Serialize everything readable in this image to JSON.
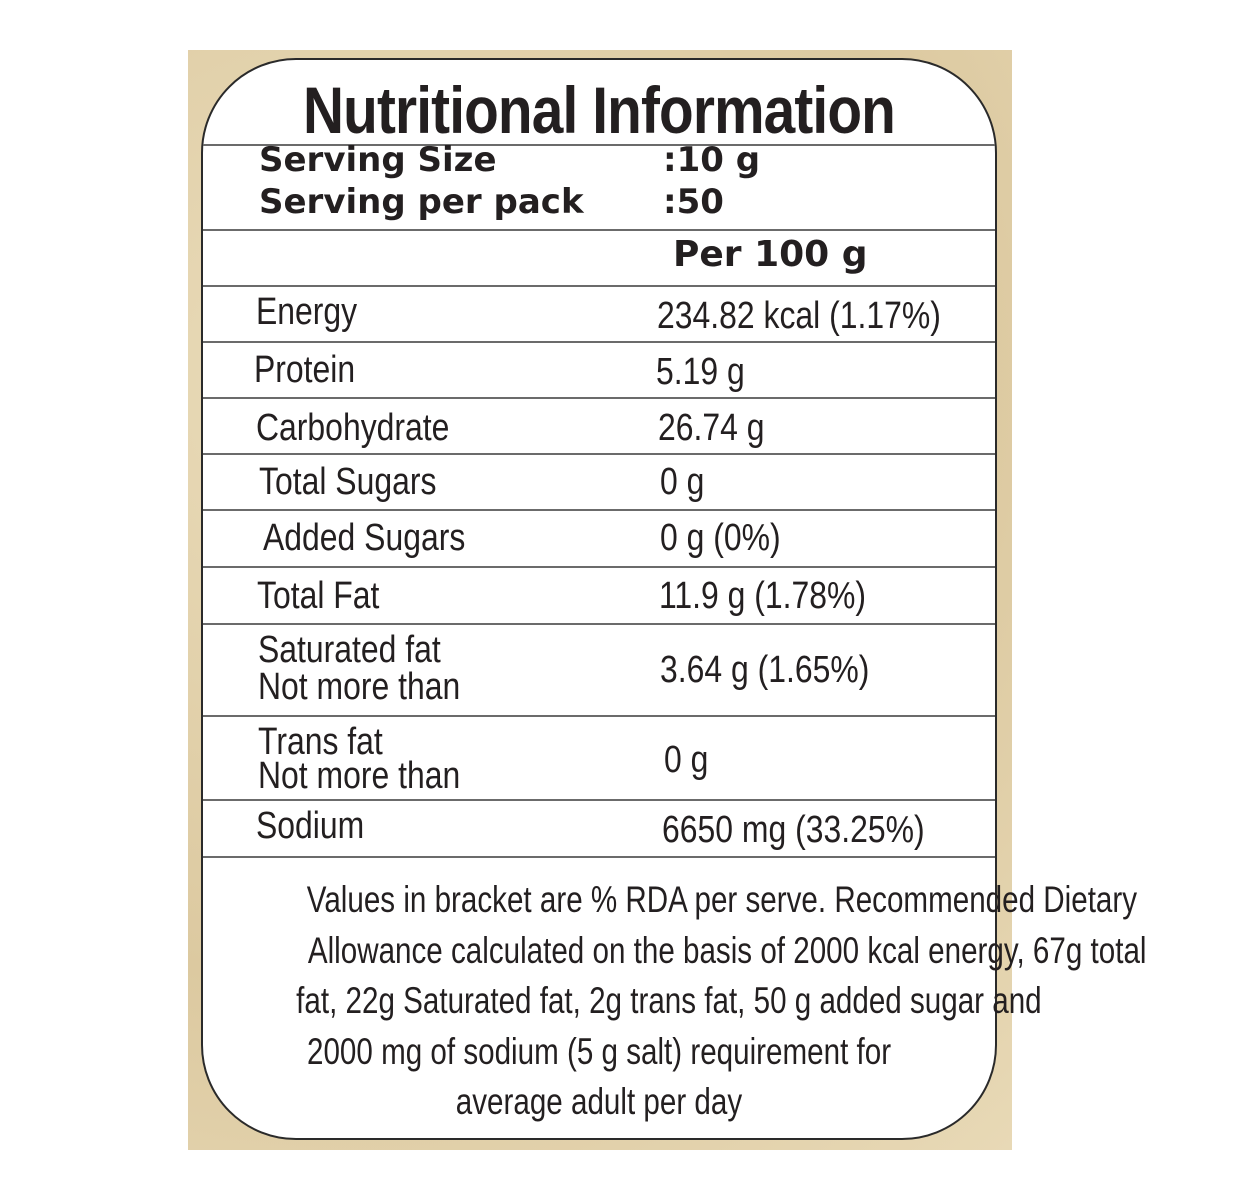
{
  "title": "Nutritional Information",
  "serving": {
    "size_label": "Serving Size",
    "size_value": ":10 g",
    "pack_label": "Serving per pack",
    "pack_value": ":50"
  },
  "column_header": "Per 100 g",
  "rows": [
    {
      "label": "Energy",
      "value": "234.82 kcal (1.17%)"
    },
    {
      "label": "Protein",
      "value": "5.19 g"
    },
    {
      "label": "Carbohydrate",
      "value": "26.74 g"
    },
    {
      "label": "Total Sugars",
      "value": "0 g"
    },
    {
      "label": "Added Sugars",
      "value": "0 g (0%)"
    },
    {
      "label": "Total Fat",
      "value": "11.9 g (1.78%)"
    },
    {
      "label": "Saturated fat",
      "label2": "Not more than",
      "value": "3.64 g (1.65%)"
    },
    {
      "label": "Trans fat",
      "label2": "Not  more than",
      "value": "0 g"
    },
    {
      "label": "Sodium",
      "value": "6650 mg (33.25%)"
    }
  ],
  "footnote": [
    "Values in bracket are % RDA per serve. Recommended Dietary",
    "Allowance calculated on the basis of 2000 kcal energy, 67g total",
    "fat, 22g Saturated fat, 2g trans fat, 50 g added sugar and",
    "2000 mg of sodium (5 g salt) requirement for",
    "average adult per day"
  ],
  "colors": {
    "background": "#e6d6b0",
    "panel": "#ffffff",
    "text": "#231f20"
  }
}
